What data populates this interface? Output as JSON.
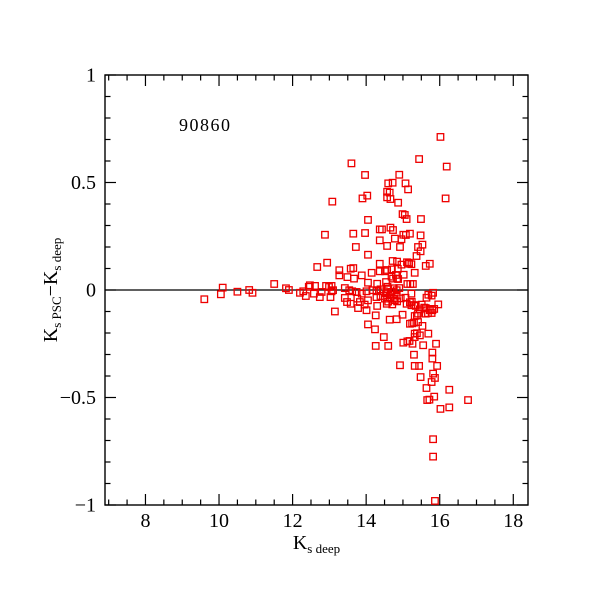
{
  "page": {
    "background": "#ffffff"
  },
  "chart_data": {
    "type": "scatter",
    "annotation": {
      "text": "90860"
    },
    "xlabel_segments": [
      {
        "t": "K"
      },
      {
        "t": "s deep",
        "sub": true
      }
    ],
    "ylabel_segments": [
      {
        "t": "K"
      },
      {
        "t": "s PSC",
        "sub": true
      },
      {
        "t": "−"
      },
      {
        "t": "K"
      },
      {
        "t": "s deep",
        "sub": true
      }
    ],
    "xlim": [
      6.9,
      18.4
    ],
    "ylim": [
      -1,
      1
    ],
    "x_major_ticks": [
      {
        "v": 8,
        "label": "8"
      },
      {
        "v": 10,
        "label": "10"
      },
      {
        "v": 12,
        "label": "12"
      },
      {
        "v": 14,
        "label": "14"
      },
      {
        "v": 16,
        "label": "16"
      },
      {
        "v": 18,
        "label": "18"
      }
    ],
    "x_minor_step": 0.5,
    "y_major_ticks": [
      {
        "v": -1,
        "label": "−1"
      },
      {
        "v": -0.5,
        "label": "−0.5"
      },
      {
        "v": 0,
        "label": "0"
      },
      {
        "v": 0.5,
        "label": "0.5"
      },
      {
        "v": 1,
        "label": "1"
      }
    ],
    "y_minor_step": 0.1,
    "hline_y": 0,
    "grid": false,
    "legend": null,
    "axis_color": "#000000",
    "marker": {
      "shape": "open-square",
      "size": 6.5,
      "color": "#ee0000",
      "stroke_width": 1.3
    },
    "points": [
      [
        9.6,
        -0.043
      ],
      [
        10.05,
        -0.02
      ],
      [
        10.1,
        0.011
      ],
      [
        10.5,
        -0.008
      ],
      [
        10.82,
        0.0
      ],
      [
        10.91,
        -0.013
      ],
      [
        11.5,
        0.028
      ],
      [
        11.82,
        0.008
      ],
      [
        11.9,
        0.0
      ],
      [
        12.2,
        -0.013
      ],
      [
        12.29,
        -0.006
      ],
      [
        12.44,
        0.015
      ],
      [
        12.47,
        0.022
      ],
      [
        12.61,
        0.019
      ],
      [
        12.58,
        -0.017
      ],
      [
        12.91,
        0.019
      ],
      [
        12.99,
        0.014
      ],
      [
        13.06,
        0.019
      ],
      [
        13.1,
        -0.001
      ],
      [
        13.06,
        -0.006
      ],
      [
        12.79,
        -0.009
      ],
      [
        12.36,
        -0.028
      ],
      [
        12.74,
        -0.033
      ],
      [
        13.03,
        -0.033
      ],
      [
        12.67,
        0.107
      ],
      [
        12.94,
        0.127
      ],
      [
        13.27,
        0.092
      ],
      [
        13.27,
        0.068
      ],
      [
        13.58,
        0.099
      ],
      [
        13.65,
        0.102
      ],
      [
        13.49,
        0.06
      ],
      [
        13.67,
        0.053
      ],
      [
        13.88,
        0.068
      ],
      [
        14.15,
        0.08
      ],
      [
        13.42,
        0.009
      ],
      [
        13.54,
        -0.001
      ],
      [
        13.62,
        -0.006
      ],
      [
        13.74,
        -0.009
      ],
      [
        13.88,
        -0.017
      ],
      [
        14.01,
        -0.006
      ],
      [
        14.17,
        -0.001
      ],
      [
        14.28,
        -0.006
      ],
      [
        14.39,
        0.003
      ],
      [
        14.48,
        -0.006
      ],
      [
        14.6,
        0.003
      ],
      [
        14.69,
        -0.009
      ],
      [
        14.83,
        -0.001
      ],
      [
        14.9,
        0.009
      ],
      [
        14.58,
        0.015
      ],
      [
        14.75,
        0.008
      ],
      [
        14.54,
        -0.015
      ],
      [
        14.66,
        -0.02
      ],
      [
        14.83,
        -0.026
      ],
      [
        14.37,
        0.122
      ],
      [
        14.37,
        0.087
      ],
      [
        14.51,
        0.087
      ],
      [
        14.7,
        0.096
      ],
      [
        14.86,
        0.098
      ],
      [
        14.84,
        0.053
      ],
      [
        14.73,
        0.053
      ],
      [
        14.81,
        0.07
      ],
      [
        14.87,
        0.051
      ],
      [
        14.05,
        0.034
      ],
      [
        14.3,
        0.029
      ],
      [
        14.54,
        0.037
      ],
      [
        14.57,
        0.093
      ],
      [
        14.69,
        0.062
      ],
      [
        14.72,
        0.135
      ],
      [
        14.84,
        0.132
      ],
      [
        15.11,
        0.129
      ],
      [
        15.16,
        0.127
      ],
      [
        13.15,
        -0.1
      ],
      [
        13.42,
        -0.037
      ],
      [
        13.48,
        -0.056
      ],
      [
        13.58,
        -0.064
      ],
      [
        13.76,
        -0.04
      ],
      [
        13.83,
        -0.056
      ],
      [
        13.96,
        -0.068
      ],
      [
        14.05,
        -0.048
      ],
      [
        13.78,
        -0.084
      ],
      [
        14.01,
        -0.094
      ],
      [
        14.28,
        -0.033
      ],
      [
        14.39,
        -0.028
      ],
      [
        14.51,
        -0.04
      ],
      [
        14.64,
        -0.033
      ],
      [
        14.75,
        -0.04
      ],
      [
        14.84,
        -0.053
      ],
      [
        14.56,
        -0.064
      ],
      [
        14.3,
        -0.074
      ],
      [
        14.78,
        -0.047
      ],
      [
        14.6,
        -0.054
      ],
      [
        14.71,
        -0.067
      ],
      [
        14.94,
        -0.039
      ],
      [
        15.07,
        -0.036
      ],
      [
        15.19,
        -0.057
      ],
      [
        15.24,
        -0.055
      ],
      [
        15.31,
        -0.07
      ],
      [
        15.64,
        -0.036
      ],
      [
        15.78,
        -0.026
      ],
      [
        15.58,
        -0.082
      ],
      [
        15.73,
        -0.088
      ],
      [
        15.85,
        -0.088
      ],
      [
        15.96,
        -0.067
      ],
      [
        15.23,
        -0.017
      ],
      [
        15.69,
        -0.022
      ],
      [
        15.82,
        -0.013
      ],
      [
        15.1,
        -0.064
      ],
      [
        15.23,
        -0.071
      ],
      [
        15.35,
        -0.074
      ],
      [
        15.51,
        -0.068
      ],
      [
        15.46,
        -0.09
      ],
      [
        15.62,
        -0.084
      ],
      [
        15.73,
        -0.094
      ],
      [
        15.8,
        -0.094
      ],
      [
        13.6,
        0.589
      ],
      [
        13.97,
        0.535
      ],
      [
        13.08,
        0.411
      ],
      [
        13.9,
        0.426
      ],
      [
        14.03,
        0.439
      ],
      [
        14.6,
        0.496
      ],
      [
        14.72,
        0.499
      ],
      [
        14.57,
        0.457
      ],
      [
        14.64,
        0.453
      ],
      [
        14.57,
        0.431
      ],
      [
        14.66,
        0.423
      ],
      [
        14.9,
        0.536
      ],
      [
        14.87,
        0.406
      ],
      [
        14.05,
        0.326
      ],
      [
        14.37,
        0.282
      ],
      [
        14.43,
        0.282
      ],
      [
        14.66,
        0.29
      ],
      [
        14.73,
        0.279
      ],
      [
        12.88,
        0.257
      ],
      [
        13.65,
        0.262
      ],
      [
        13.97,
        0.265
      ],
      [
        14.37,
        0.231
      ],
      [
        14.57,
        0.205
      ],
      [
        14.78,
        0.239
      ],
      [
        13.72,
        0.2
      ],
      [
        14.05,
        0.164
      ],
      [
        14.92,
        0.2
      ],
      [
        15.44,
        0.609
      ],
      [
        16.19,
        0.574
      ],
      [
        15.07,
        0.496
      ],
      [
        15.14,
        0.468
      ],
      [
        16.16,
        0.426
      ],
      [
        14.99,
        0.353
      ],
      [
        15.05,
        0.349
      ],
      [
        15.1,
        0.33
      ],
      [
        15.49,
        0.33
      ],
      [
        16.02,
        0.712
      ],
      [
        15.01,
        0.257
      ],
      [
        15.08,
        0.256
      ],
      [
        15.19,
        0.262
      ],
      [
        15.48,
        0.254
      ],
      [
        14.96,
        0.236
      ],
      [
        15.41,
        0.2
      ],
      [
        15.53,
        0.211
      ],
      [
        15.48,
        0.18
      ],
      [
        15.37,
        0.158
      ],
      [
        15.73,
        0.122
      ],
      [
        15.17,
        0.122
      ],
      [
        15.23,
        0.12
      ],
      [
        14.96,
        0.118
      ],
      [
        15.62,
        0.112
      ],
      [
        15.32,
        0.08
      ],
      [
        15.02,
        0.071
      ],
      [
        15.12,
        0.028
      ],
      [
        15.2,
        0.028
      ],
      [
        15.27,
        0.028
      ],
      [
        14.26,
        -0.118
      ],
      [
        14.05,
        -0.16
      ],
      [
        14.64,
        -0.138
      ],
      [
        14.83,
        -0.136
      ],
      [
        14.24,
        -0.183
      ],
      [
        14.48,
        -0.219
      ],
      [
        14.26,
        -0.26
      ],
      [
        14.6,
        -0.26
      ],
      [
        14.99,
        -0.115
      ],
      [
        15.32,
        -0.121
      ],
      [
        15.38,
        -0.119
      ],
      [
        15.41,
        -0.11
      ],
      [
        15.62,
        -0.11
      ],
      [
        15.68,
        -0.108
      ],
      [
        15.78,
        -0.107
      ],
      [
        15.19,
        -0.157
      ],
      [
        15.25,
        -0.155
      ],
      [
        15.3,
        -0.152
      ],
      [
        15.41,
        -0.149
      ],
      [
        15.53,
        -0.167
      ],
      [
        15.32,
        -0.203
      ],
      [
        15.38,
        -0.201
      ],
      [
        15.32,
        -0.219
      ],
      [
        15.46,
        -0.211
      ],
      [
        15.69,
        -0.203
      ],
      [
        15.12,
        -0.239
      ],
      [
        15.18,
        -0.237
      ],
      [
        15.26,
        -0.25
      ],
      [
        15.01,
        -0.245
      ],
      [
        15.55,
        -0.257
      ],
      [
        15.9,
        -0.25
      ],
      [
        15.3,
        -0.301
      ],
      [
        15.8,
        -0.291
      ],
      [
        15.8,
        -0.319
      ],
      [
        15.93,
        -0.353
      ],
      [
        14.92,
        -0.35
      ],
      [
        15.32,
        -0.353
      ],
      [
        15.44,
        -0.353
      ],
      [
        15.48,
        -0.405
      ],
      [
        15.82,
        -0.389
      ],
      [
        15.87,
        -0.409
      ],
      [
        15.78,
        -0.428
      ],
      [
        15.64,
        -0.456
      ],
      [
        16.26,
        -0.464
      ],
      [
        15.66,
        -0.512
      ],
      [
        15.72,
        -0.51
      ],
      [
        15.85,
        -0.496
      ],
      [
        16.02,
        -0.553
      ],
      [
        16.26,
        -0.546
      ],
      [
        16.77,
        -0.512
      ],
      [
        15.82,
        -0.694
      ],
      [
        15.82,
        -0.775
      ],
      [
        15.87,
        -0.981
      ]
    ]
  }
}
